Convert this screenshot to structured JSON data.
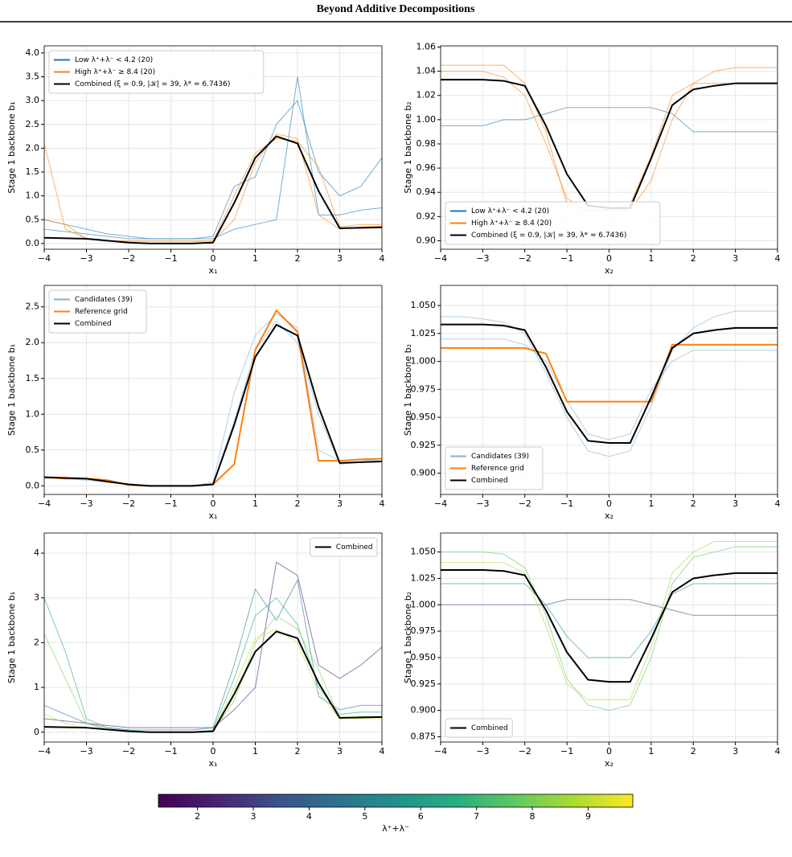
{
  "header": {
    "title": "Beyond Additive Decompositions"
  },
  "chart_data": [
    {
      "type": "line",
      "xlabel": "x₁",
      "ylabel": "Stage 1 backbone b₁",
      "grid": true,
      "legend": "upper left",
      "x": [
        -4,
        -3.5,
        -3,
        -2.5,
        -2,
        -1.5,
        -1,
        -0.5,
        0,
        0.5,
        1,
        1.5,
        2,
        2.5,
        3,
        3.5,
        4
      ],
      "xlim": [
        -4,
        4
      ],
      "xticks": [
        -4,
        -3,
        -2,
        -1,
        0,
        1,
        2,
        3,
        4
      ],
      "ylim": [
        -0.12,
        4.15
      ],
      "yticks": [
        {
          "value": 0,
          "label": "0.0"
        },
        {
          "value": 0.5,
          "label": "0.5"
        },
        {
          "value": 1,
          "label": "1.0"
        },
        {
          "value": 1.5,
          "label": "1.5"
        },
        {
          "value": 2,
          "label": "2.0"
        },
        {
          "value": 2.5,
          "label": "2.5"
        },
        {
          "value": 3,
          "label": "3.0"
        },
        {
          "value": 3.5,
          "label": "3.5"
        },
        {
          "value": 4,
          "label": "4.0"
        }
      ],
      "series": [
        {
          "name": "Low λ⁺+λ⁻ < 4.2 (20)",
          "color": "#1f77b4",
          "values": [
            0.3,
            0.25,
            0.2,
            0.15,
            0.1,
            0.1,
            0.1,
            0.1,
            0.1,
            0.3,
            0.4,
            0.5,
            3.5,
            0.6,
            0.6,
            0.7,
            0.75
          ]
        },
        {
          "color": "#1f77b4",
          "values": [
            0.5,
            0.4,
            0.3,
            0.2,
            0.15,
            0.1,
            0.1,
            0.1,
            0.15,
            1.2,
            1.4,
            2.5,
            3.0,
            1.5,
            1.0,
            1.2,
            1.8
          ]
        },
        {
          "name": "High λ⁺+λ⁻ ≥ 8.4 (20)",
          "color": "#ff7f0e",
          "values": [
            0.5,
            0.4,
            0.1,
            0.05,
            0.05,
            0.05,
            0.05,
            0.05,
            0.05,
            1.0,
            1.9,
            2.2,
            2.15,
            1.6,
            0.35,
            0.4,
            0.4
          ]
        },
        {
          "color": "#ff7f0e",
          "values": [
            2.1,
            0.3,
            0.1,
            0.05,
            0.05,
            0.05,
            0.05,
            0.05,
            0.05,
            0.5,
            1.7,
            2.3,
            2.2,
            0.6,
            0.3,
            0.35,
            0.36
          ]
        },
        {
          "name": "Combined (ξ = 0.9, |𝒦| = 39, λ* ≈ 6.7436)",
          "color": "#000000",
          "linewidth": 2,
          "values": [
            0.12,
            0.11,
            0.1,
            0.06,
            0.02,
            0.0,
            0.0,
            0.0,
            0.02,
            0.85,
            1.8,
            2.25,
            2.1,
            1.1,
            0.32,
            0.33,
            0.34
          ]
        }
      ]
    },
    {
      "type": "line",
      "xlabel": "x₂",
      "ylabel": "Stage 1 backbone b₂",
      "grid": true,
      "legend": "lower left",
      "x": [
        -4,
        -3.5,
        -3,
        -2.5,
        -2,
        -1.5,
        -1,
        -0.5,
        0,
        0.5,
        1,
        1.5,
        2,
        2.5,
        3,
        3.5,
        4
      ],
      "xlim": [
        -4,
        4
      ],
      "xticks": [
        -4,
        -3,
        -2,
        -1,
        0,
        1,
        2,
        3,
        4
      ],
      "ylim": [
        0.893,
        1.061
      ],
      "yticks": [
        {
          "value": 0.9,
          "label": "0.90"
        },
        {
          "value": 0.92,
          "label": "0.92"
        },
        {
          "value": 0.94,
          "label": "0.94"
        },
        {
          "value": 0.96,
          "label": "0.96"
        },
        {
          "value": 0.98,
          "label": "0.98"
        },
        {
          "value": 1,
          "label": "1.00"
        },
        {
          "value": 1.02,
          "label": "1.02"
        },
        {
          "value": 1.04,
          "label": "1.04"
        },
        {
          "value": 1.06,
          "label": "1.06"
        }
      ],
      "series": [
        {
          "name": "Low λ⁺+λ⁻ < 4.2 (20)",
          "color": "#1f77b4",
          "values": [
            0.995,
            0.995,
            0.995,
            1.0,
            1.0,
            1.005,
            1.01,
            1.01,
            1.01,
            1.01,
            1.01,
            1.005,
            0.99,
            0.99,
            0.99,
            0.99,
            0.99
          ]
        },
        {
          "name": "High λ⁺+λ⁻ ≥ 8.4 (20)",
          "color": "#ff7f0e",
          "values": [
            1.04,
            1.04,
            1.04,
            1.035,
            1.02,
            0.98,
            0.935,
            0.925,
            0.925,
            0.925,
            0.95,
            1.0,
            1.03,
            1.04,
            1.043,
            1.043,
            1.043
          ]
        },
        {
          "color": "#ff7f0e",
          "values": [
            1.045,
            1.045,
            1.045,
            1.045,
            1.03,
            0.99,
            0.93,
            0.925,
            0.925,
            0.93,
            0.97,
            1.02,
            1.03,
            1.03,
            1.03,
            1.03,
            1.03
          ]
        },
        {
          "name": "Combined (ξ = 0.9, |𝒦| = 39, λ* ≈ 6.7436)",
          "color": "#000000",
          "linewidth": 2,
          "values": [
            1.033,
            1.033,
            1.033,
            1.032,
            1.028,
            0.995,
            0.955,
            0.929,
            0.927,
            0.927,
            0.968,
            1.012,
            1.025,
            1.028,
            1.03,
            1.03,
            1.03
          ]
        }
      ]
    },
    {
      "type": "line",
      "xlabel": "x₁",
      "ylabel": "Stage 1 backbone b₁",
      "grid": true,
      "legend": "upper left",
      "x": [
        -4,
        -3.5,
        -3,
        -2.5,
        -2,
        -1.5,
        -1,
        -0.5,
        0,
        0.5,
        1,
        1.5,
        2,
        2.5,
        3,
        3.5,
        4
      ],
      "xlim": [
        -4,
        4
      ],
      "xticks": [
        -4,
        -3,
        -2,
        -1,
        0,
        1,
        2,
        3,
        4
      ],
      "ylim": [
        -0.12,
        2.8
      ],
      "yticks": [
        {
          "value": 0,
          "label": "0.0"
        },
        {
          "value": 0.5,
          "label": "0.5"
        },
        {
          "value": 1,
          "label": "1.0"
        },
        {
          "value": 1.5,
          "label": "1.5"
        },
        {
          "value": 2,
          "label": "2.0"
        },
        {
          "value": 2.5,
          "label": "2.5"
        }
      ],
      "series": [
        {
          "name": "Candidates (39)",
          "color": "#7fb1d8",
          "values": [
            0.12,
            0.1,
            0.08,
            0.05,
            0.02,
            0.0,
            0.0,
            0.0,
            0.03,
            0.9,
            1.9,
            2.3,
            2.0,
            1.0,
            0.3,
            0.33,
            0.34
          ]
        },
        {
          "color": "#7fb1d8",
          "values": [
            0.11,
            0.1,
            0.1,
            0.06,
            0.02,
            0.0,
            0.0,
            0.0,
            0.05,
            1.3,
            2.1,
            2.4,
            2.2,
            0.5,
            0.35,
            0.36,
            0.35
          ]
        },
        {
          "name": "Reference grid",
          "color": "#ff7f0e",
          "linewidth": 2,
          "values": [
            0.12,
            0.1,
            0.1,
            0.08,
            0.01,
            0.0,
            0.0,
            0.0,
            0.02,
            0.3,
            1.9,
            2.45,
            2.15,
            0.35,
            0.35,
            0.37,
            0.38
          ]
        },
        {
          "name": "Combined",
          "color": "#000000",
          "linewidth": 2,
          "values": [
            0.12,
            0.11,
            0.1,
            0.06,
            0.02,
            0.0,
            0.0,
            0.0,
            0.02,
            0.85,
            1.8,
            2.25,
            2.1,
            1.1,
            0.32,
            0.33,
            0.34
          ]
        }
      ]
    },
    {
      "type": "line",
      "xlabel": "x₂",
      "ylabel": "Stage 1 backbone b₂",
      "grid": true,
      "legend": "lower left",
      "x": [
        -4,
        -3.5,
        -3,
        -2.5,
        -2,
        -1.5,
        -1,
        -0.5,
        0,
        0.5,
        1,
        1.5,
        2,
        2.5,
        3,
        3.5,
        4
      ],
      "xlim": [
        -4,
        4
      ],
      "xticks": [
        -4,
        -3,
        -2,
        -1,
        0,
        1,
        2,
        3,
        4
      ],
      "ylim": [
        0.881,
        1.068
      ],
      "yticks": [
        {
          "value": 0.9,
          "label": "0.900"
        },
        {
          "value": 0.925,
          "label": "0.925"
        },
        {
          "value": 0.95,
          "label": "0.950"
        },
        {
          "value": 0.975,
          "label": "0.975"
        },
        {
          "value": 1,
          "label": "1.000"
        },
        {
          "value": 1.025,
          "label": "1.025"
        },
        {
          "value": 1.05,
          "label": "1.050"
        }
      ],
      "series": [
        {
          "name": "Candidates (39)",
          "color": "#7fb1d8",
          "values": [
            1.04,
            1.04,
            1.038,
            1.035,
            1.025,
            0.99,
            0.95,
            0.92,
            0.915,
            0.92,
            0.96,
            1.01,
            1.03,
            1.04,
            1.045,
            1.045,
            1.045
          ]
        },
        {
          "color": "#7fb1d8",
          "values": [
            1.02,
            1.02,
            1.02,
            1.02,
            1.015,
            1.0,
            0.965,
            0.935,
            0.93,
            0.935,
            0.975,
            1.0,
            1.01,
            1.01,
            1.01,
            1.01,
            1.01
          ]
        },
        {
          "name": "Reference grid",
          "color": "#ff7f0e",
          "linewidth": 2,
          "values": [
            1.012,
            1.012,
            1.012,
            1.012,
            1.012,
            1.007,
            0.964,
            0.964,
            0.964,
            0.964,
            0.964,
            1.015,
            1.015,
            1.015,
            1.015,
            1.015,
            1.015
          ]
        },
        {
          "name": "Combined",
          "color": "#000000",
          "linewidth": 2,
          "values": [
            1.033,
            1.033,
            1.033,
            1.032,
            1.028,
            0.995,
            0.955,
            0.929,
            0.927,
            0.927,
            0.968,
            1.012,
            1.025,
            1.028,
            1.03,
            1.03,
            1.03
          ]
        }
      ]
    },
    {
      "type": "line",
      "xlabel": "x₁",
      "ylabel": "Stage 1 backbone b₁",
      "grid": true,
      "legend": "upper right",
      "x": [
        -4,
        -3.5,
        -3,
        -2.5,
        -2,
        -1.5,
        -1,
        -0.5,
        0,
        0.5,
        1,
        1.5,
        2,
        2.5,
        3,
        3.5,
        4
      ],
      "xlim": [
        -4,
        4
      ],
      "xticks": [
        -4,
        -3,
        -2,
        -1,
        0,
        1,
        2,
        3,
        4
      ],
      "ylim": [
        -0.22,
        4.45
      ],
      "yticks": [
        0,
        1,
        2,
        3,
        4
      ],
      "series": [
        {
          "color": "#482475",
          "values": [
            0.3,
            0.25,
            0.2,
            0.15,
            0.1,
            0.1,
            0.1,
            0.1,
            0.1,
            0.5,
            1.0,
            3.8,
            3.5,
            1.5,
            1.2,
            1.5,
            1.9
          ]
        },
        {
          "color": "#2a788e",
          "values": [
            0.6,
            0.4,
            0.2,
            0.1,
            0.05,
            0.05,
            0.05,
            0.05,
            0.1,
            1.5,
            3.2,
            2.5,
            3.4,
            0.8,
            0.5,
            0.6,
            0.6
          ]
        },
        {
          "color": "#22a884",
          "values": [
            3.0,
            1.8,
            0.3,
            0.1,
            0.05,
            0.0,
            0.0,
            0.0,
            0.05,
            1.2,
            2.6,
            3.0,
            2.4,
            1.0,
            0.4,
            0.45,
            0.45
          ]
        },
        {
          "color": "#7ad151",
          "values": [
            2.2,
            1.2,
            0.2,
            0.05,
            0.02,
            0.0,
            0.0,
            0.0,
            0.02,
            0.7,
            2.0,
            2.6,
            2.3,
            1.4,
            0.3,
            0.35,
            0.35
          ]
        },
        {
          "color": "#bddf26",
          "values": [
            0.4,
            0.2,
            0.1,
            0.05,
            0.02,
            0.0,
            0.0,
            0.0,
            0.02,
            1.0,
            2.1,
            2.3,
            2.0,
            0.9,
            0.3,
            0.3,
            0.3
          ]
        },
        {
          "name": "Combined",
          "color": "#000000",
          "linewidth": 2,
          "values": [
            0.12,
            0.11,
            0.1,
            0.06,
            0.02,
            0.0,
            0.0,
            0.0,
            0.02,
            0.85,
            1.8,
            2.25,
            2.1,
            1.1,
            0.32,
            0.33,
            0.34
          ]
        }
      ]
    },
    {
      "type": "line",
      "xlabel": "x₂",
      "ylabel": "Stage 1 backbone b₂",
      "grid": true,
      "legend": "lower left",
      "x": [
        -4,
        -3.5,
        -3,
        -2.5,
        -2,
        -1.5,
        -1,
        -0.5,
        0,
        0.5,
        1,
        1.5,
        2,
        2.5,
        3,
        3.5,
        4
      ],
      "xlim": [
        -4,
        4
      ],
      "xticks": [
        -4,
        -3,
        -2,
        -1,
        0,
        1,
        2,
        3,
        4
      ],
      "ylim": [
        0.87,
        1.068
      ],
      "yticks": [
        {
          "value": 0.875,
          "label": "0.875"
        },
        {
          "value": 0.9,
          "label": "0.900"
        },
        {
          "value": 0.925,
          "label": "0.925"
        },
        {
          "value": 0.95,
          "label": "0.950"
        },
        {
          "value": 0.975,
          "label": "0.975"
        },
        {
          "value": 1,
          "label": "1.000"
        },
        {
          "value": 1.025,
          "label": "1.025"
        },
        {
          "value": 1.05,
          "label": "1.050"
        }
      ],
      "series": [
        {
          "color": "#3b528b",
          "values": [
            1.0,
            1.0,
            1.0,
            1.0,
            1.0,
            1.0,
            1.005,
            1.005,
            1.005,
            1.005,
            1.0,
            0.995,
            0.99,
            0.99,
            0.99,
            0.99,
            0.99
          ]
        },
        {
          "color": "#21918c",
          "values": [
            1.02,
            1.02,
            1.02,
            1.02,
            1.02,
            1.0,
            0.97,
            0.95,
            0.95,
            0.95,
            0.975,
            1.01,
            1.02,
            1.02,
            1.02,
            1.02,
            1.02
          ]
        },
        {
          "color": "#5ec962",
          "values": [
            1.05,
            1.05,
            1.05,
            1.048,
            1.035,
            0.99,
            0.93,
            0.905,
            0.9,
            0.905,
            0.95,
            1.02,
            1.045,
            1.05,
            1.055,
            1.055,
            1.055
          ]
        },
        {
          "color": "#a0da39",
          "values": [
            1.04,
            1.04,
            1.04,
            1.04,
            1.03,
            0.98,
            0.925,
            0.91,
            0.91,
            0.91,
            0.96,
            1.03,
            1.05,
            1.06,
            1.06,
            1.06,
            1.06
          ]
        },
        {
          "name": "Combined",
          "color": "#000000",
          "linewidth": 2,
          "values": [
            1.033,
            1.033,
            1.033,
            1.032,
            1.028,
            0.995,
            0.955,
            0.929,
            0.927,
            0.927,
            0.968,
            1.012,
            1.025,
            1.028,
            1.03,
            1.03,
            1.03
          ]
        }
      ]
    },
    {
      "type": "colorbar",
      "colormap": "viridis",
      "xlabel": "λ⁺+λ⁻",
      "xlim": [
        1.3,
        9.8
      ],
      "xticks": [
        2,
        3,
        4,
        5,
        6,
        7,
        8,
        9
      ]
    }
  ]
}
